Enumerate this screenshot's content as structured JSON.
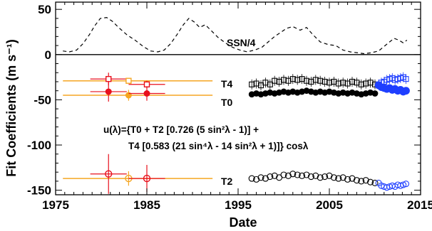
{
  "chart_data": {
    "type": "scatter",
    "xlabel": "Date",
    "ylabel": "Fit Coefficients (m s⁻¹)",
    "xlim": [
      1975,
      2015
    ],
    "ylim": [
      -155,
      58
    ],
    "x_ticks": [
      "1975",
      "1985",
      "1995",
      "2005",
      "2015"
    ],
    "y_ticks": [
      "50",
      "0",
      "-50",
      "-100",
      "-150"
    ],
    "grid": false,
    "colors": {
      "orange": "#f5a623",
      "red": "#e8101c",
      "blue": "#1f3fff",
      "black": "#000000"
    },
    "annotations": {
      "ssn": "SSN/4",
      "t4": "T4",
      "t0": "T0",
      "t2": "T2",
      "formula_line1": "u(λ)={T0 + T2 [0.726 (5 sin²λ - 1)] +",
      "formula_line2": "T4 [0.583 (21 sin⁴λ - 14 sin²λ + 1)]} cosλ"
    },
    "ssn_curve": {
      "name": "SSN/4",
      "x": [
        1975.8,
        1976.5,
        1977.3,
        1978.0,
        1978.7,
        1979.3,
        1979.9,
        1980.6,
        1981.2,
        1981.9,
        1982.8,
        1983.7,
        1984.6,
        1985.4,
        1986.2,
        1986.9,
        1987.6,
        1988.3,
        1989.0,
        1989.6,
        1990.2,
        1990.8,
        1991.4,
        1992.1,
        1992.8,
        1993.6,
        1994.4,
        1995.2,
        1996.0,
        1996.8,
        1997.6,
        1998.3,
        1999.0,
        1999.6,
        2000.3,
        2001.0,
        2001.8,
        2002.5,
        2003.2,
        2004.0,
        2004.9,
        2005.7,
        2006.5,
        2007.3,
        2008.1,
        2008.8,
        2009.6,
        2010.4,
        2011.0,
        2011.6,
        2012.1,
        2012.6,
        2013.1,
        2013.5
      ],
      "y": [
        4,
        3,
        5,
        12,
        22,
        32,
        40,
        41,
        37,
        30,
        22,
        16,
        9,
        4,
        3,
        5,
        12,
        22,
        33,
        40,
        36,
        30,
        33,
        26,
        19,
        13,
        8,
        5,
        3,
        5,
        8,
        14,
        20,
        24,
        29,
        31,
        27,
        30,
        22,
        14,
        11,
        10,
        5,
        3,
        2,
        1,
        2,
        4,
        9,
        14,
        18,
        16,
        13,
        16
      ]
    },
    "series": [
      {
        "name": "T4",
        "x": [
          1996.5,
          1997.0,
          1997.5,
          1998.0,
          1998.5,
          1999.0,
          1999.5,
          2000.0,
          2000.5,
          2001.0,
          2001.5,
          2002.0,
          2002.5,
          2003.0,
          2003.5,
          2004.0,
          2004.5,
          2005.0,
          2005.5,
          2006.0,
          2006.5,
          2007.0,
          2007.5,
          2008.0,
          2008.5,
          2009.0,
          2009.5,
          2010.0
        ],
        "y": [
          -33,
          -32,
          -34,
          -31,
          -33,
          -29,
          -30,
          -28,
          -29,
          -27,
          -28,
          -27,
          -29,
          -30,
          -28,
          -29,
          -30,
          -31,
          -30,
          -32,
          -31,
          -32,
          -30,
          -31,
          -33,
          -32,
          -31,
          -33
        ]
      },
      {
        "name": "T4 (HMI)",
        "x": [
          2010.4,
          2010.7,
          2011.0,
          2011.3,
          2011.6,
          2011.9,
          2012.2,
          2012.5,
          2012.8,
          2013.1,
          2013.4
        ],
        "y": [
          -33,
          -31,
          -30,
          -28,
          -27,
          -26,
          -28,
          -27,
          -26,
          -25,
          -27
        ]
      },
      {
        "name": "T0",
        "x": [
          1996.5,
          1997.0,
          1997.5,
          1998.0,
          1998.5,
          1999.0,
          1999.5,
          2000.0,
          2000.5,
          2001.0,
          2001.5,
          2002.0,
          2002.5,
          2003.0,
          2003.5,
          2004.0,
          2004.5,
          2005.0,
          2005.5,
          2006.0,
          2006.5,
          2007.0,
          2007.5,
          2008.0,
          2008.5,
          2009.0,
          2009.5,
          2010.0
        ],
        "y": [
          -44,
          -43,
          -44,
          -43,
          -42,
          -43,
          -42,
          -41,
          -42,
          -41,
          -42,
          -41,
          -40,
          -41,
          -42,
          -41,
          -42,
          -41,
          -42,
          -43,
          -42,
          -43,
          -42,
          -43,
          -44,
          -43,
          -42,
          -43
        ]
      },
      {
        "name": "T0 (HMI)",
        "x": [
          2010.4,
          2010.7,
          2011.0,
          2011.3,
          2011.6,
          2011.9,
          2012.2,
          2012.5,
          2012.8,
          2013.1,
          2013.4
        ],
        "y": [
          -34,
          -36,
          -37,
          -38,
          -37,
          -39,
          -38,
          -40,
          -39,
          -41,
          -40
        ]
      },
      {
        "name": "T2",
        "x": [
          1996.5,
          1997.0,
          1997.5,
          1998.0,
          1998.5,
          1999.0,
          1999.5,
          2000.0,
          2000.5,
          2001.0,
          2001.5,
          2002.0,
          2002.5,
          2003.0,
          2003.5,
          2004.0,
          2004.5,
          2005.0,
          2005.5,
          2006.0,
          2006.5,
          2007.0,
          2007.5,
          2008.0,
          2008.5,
          2009.0,
          2009.5,
          2010.0
        ],
        "y": [
          -137,
          -138,
          -136,
          -137,
          -135,
          -134,
          -136,
          -133,
          -134,
          -132,
          -133,
          -134,
          -133,
          -135,
          -134,
          -136,
          -135,
          -134,
          -136,
          -137,
          -136,
          -138,
          -137,
          -139,
          -140,
          -139,
          -141,
          -142
        ]
      },
      {
        "name": "T2 (HMI)",
        "x": [
          2010.4,
          2010.7,
          2011.0,
          2011.3,
          2011.6,
          2011.9,
          2012.2,
          2012.5,
          2012.8,
          2013.1,
          2013.4
        ],
        "y": [
          -142,
          -145,
          -146,
          -147,
          -146,
          -145,
          -146,
          -144,
          -145,
          -144,
          -143
        ]
      }
    ],
    "early_points": [
      {
        "x": 1980.8,
        "y": -27,
        "xerr": 2.0,
        "yerr": 7,
        "series": "T4",
        "color": "red",
        "marker": "open-square"
      },
      {
        "x": 1983.0,
        "y": -29,
        "xerr": 0.4,
        "yerr": 2,
        "series": "T4",
        "color": "orange",
        "marker": "open-square"
      },
      {
        "x": 1985.0,
        "y": -33,
        "xerr": 2.0,
        "yerr": 4,
        "series": "T4",
        "color": "red",
        "marker": "open-square"
      },
      {
        "x": 1980.8,
        "y": -41,
        "xerr": 2.0,
        "yerr": 11,
        "series": "T0",
        "color": "red",
        "marker": "filled-circle"
      },
      {
        "x": 1983.0,
        "y": -45,
        "xerr": 0.4,
        "yerr": 6,
        "series": "T0",
        "color": "orange",
        "marker": "filled-circle"
      },
      {
        "x": 1985.0,
        "y": -43,
        "xerr": 2.0,
        "yerr": 8,
        "series": "T0",
        "color": "red",
        "marker": "filled-circle"
      },
      {
        "x": 1980.8,
        "y": -132,
        "xerr": 2.0,
        "yerr": 22,
        "series": "T2",
        "color": "red",
        "marker": "open-circle"
      },
      {
        "x": 1983.0,
        "y": -137,
        "xerr": 0.4,
        "yerr": 8,
        "series": "T2",
        "color": "orange",
        "marker": "open-circle"
      },
      {
        "x": 1985.0,
        "y": -137,
        "xerr": 2.0,
        "yerr": 15,
        "series": "T2",
        "color": "red",
        "marker": "open-circle"
      }
    ],
    "reference_lines": [
      {
        "series": "T4",
        "y": -29,
        "x_start": 1975.8,
        "x_end": 1992.2,
        "color": "orange"
      },
      {
        "series": "T0",
        "y": -45,
        "x_start": 1975.8,
        "x_end": 1992.2,
        "color": "orange"
      },
      {
        "series": "T2",
        "y": -137,
        "x_start": 1975.8,
        "x_end": 1992.2,
        "color": "orange"
      }
    ],
    "zero_line": 0
  }
}
